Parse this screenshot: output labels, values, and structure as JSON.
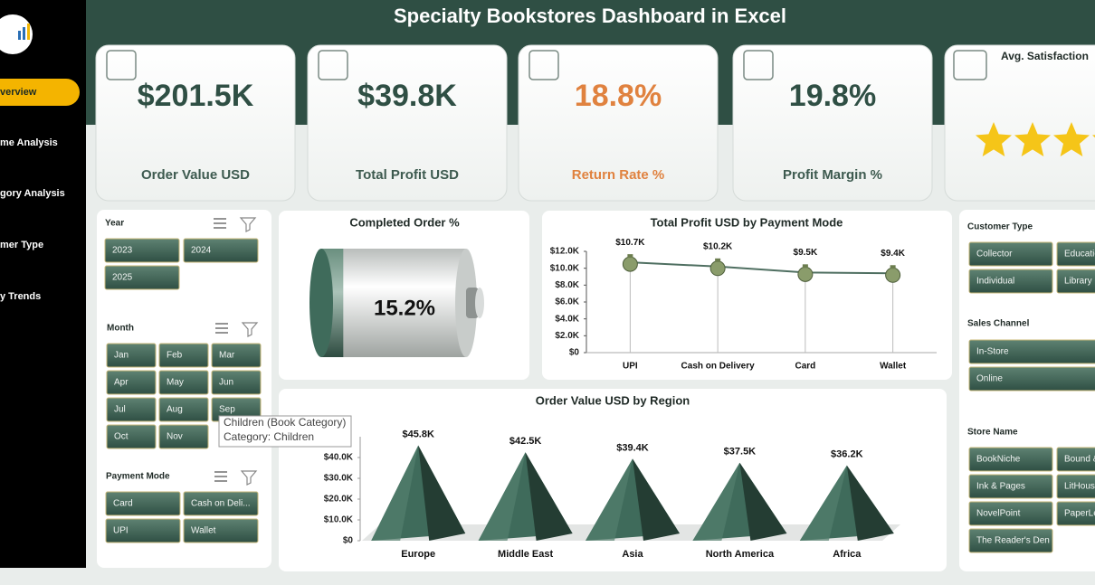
{
  "header": {
    "title": "Specialty Bookstores Dashboard in Excel"
  },
  "sidebar": {
    "items": [
      "verview",
      "me Analysis",
      "gory Analysis",
      "mer Type",
      "y Trends"
    ],
    "active": 0
  },
  "kpis": [
    {
      "value": "$201.5K",
      "label": "Order Value USD",
      "color": "#2f4f44"
    },
    {
      "value": "$39.8K",
      "label": "Total Profit USD",
      "color": "#2f4f44"
    },
    {
      "value": "18.8%",
      "label": "Return Rate %",
      "color": "#e0823f"
    },
    {
      "value": "19.8%",
      "label": "Profit Margin %",
      "color": "#2f4f44"
    }
  ],
  "satisfaction": {
    "title": "Avg. Satisfaction"
  },
  "slicers_left": [
    {
      "title": "Year",
      "items": [
        "2023",
        "2024",
        "2025"
      ]
    },
    {
      "title": "Month",
      "items": [
        "Jan",
        "Feb",
        "Mar",
        "Apr",
        "May",
        "Jun",
        "Jul",
        "Aug",
        "Sep",
        "Oct",
        "Nov"
      ]
    },
    {
      "title": "Payment Mode",
      "items": [
        "Card",
        "Cash on Deli...",
        "UPI",
        "Wallet"
      ]
    }
  ],
  "slicers_right": [
    {
      "title": "Customer Type",
      "items": [
        "Collector",
        "Educatio",
        "Individual",
        "Library"
      ]
    },
    {
      "title": "Sales Channel",
      "items": [
        "In-Store",
        "Online"
      ]
    },
    {
      "title": "Store Name",
      "items": [
        "BookNiche",
        "Bound &",
        "Ink & Pages",
        "LitHous",
        "NovelPoint",
        "PaperLe",
        "The Reader's Den"
      ]
    }
  ],
  "tooltip": {
    "lines": [
      "Children (Book Category)",
      "Category: Children"
    ]
  },
  "gauge": {
    "title": "Completed Order %",
    "value": 15.2,
    "label": "15.2%",
    "color": "#3f6b5b"
  },
  "chart_data": [
    {
      "type": "line",
      "title": "Total Profit USD by Payment Mode",
      "categories": [
        "UPI",
        "Cash on Delivery",
        "Card",
        "Wallet"
      ],
      "values": [
        10700,
        10200,
        9500,
        9400
      ],
      "value_labels": [
        "$10.7K",
        "$10.2K",
        "$9.5K",
        "$9.4K"
      ],
      "color": "#4f6f61",
      "ylim": [
        0,
        12000
      ],
      "yticks": [
        {
          "value": 0,
          "label": "$0"
        },
        {
          "value": 2000,
          "label": "$2.0K"
        },
        {
          "value": 4000,
          "label": "$4.0K"
        },
        {
          "value": 6000,
          "label": "$6.0K"
        },
        {
          "value": 8000,
          "label": "$8.0K"
        },
        {
          "value": 10000,
          "label": "$10.0K"
        },
        {
          "value": 12000,
          "label": "$12.0K"
        }
      ]
    },
    {
      "type": "pyramid",
      "title": "Order Value USD by Region",
      "categories": [
        "Europe",
        "Middle East",
        "Asia",
        "North America",
        "Africa"
      ],
      "values": [
        45800,
        42500,
        39400,
        37500,
        36200
      ],
      "value_labels": [
        "$45.8K",
        "$42.5K",
        "$39.4K",
        "$37.5K",
        "$36.2K"
      ],
      "color": "#3f6b5b",
      "ylim": [
        0,
        50000
      ],
      "yticks": [
        {
          "value": 0,
          "label": "$0"
        },
        {
          "value": 10000,
          "label": "$10.0K"
        },
        {
          "value": 20000,
          "label": "$20.0K"
        },
        {
          "value": 30000,
          "label": "$30.0K"
        },
        {
          "value": 40000,
          "label": "$40.0K"
        }
      ]
    }
  ]
}
